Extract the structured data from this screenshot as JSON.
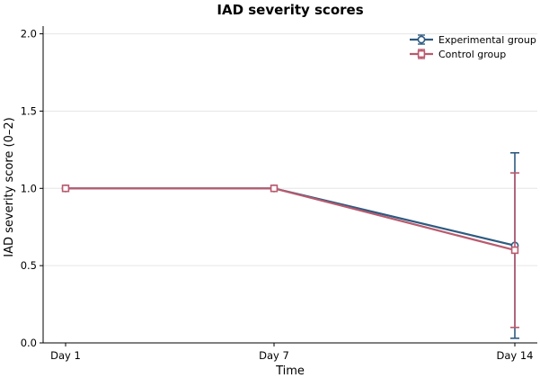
{
  "chart_data": {
    "type": "line",
    "title": "IAD severity scores",
    "xlabel": "Time",
    "ylabel": "IAD severity score (0–2)",
    "categories": [
      "Day 1",
      "Day 7",
      "Day 14"
    ],
    "ylim": [
      0,
      2.05
    ],
    "yticks": [
      "0.0",
      "0.5",
      "1.0",
      "1.5",
      "2.0"
    ],
    "grid": "horizontal",
    "legend_position": "top-right",
    "series": [
      {
        "name": "Experimental group",
        "marker": "circle",
        "color": "#2e5b80",
        "values": [
          1.0,
          1.0,
          0.63
        ],
        "error_low": [
          1.0,
          1.0,
          0.03
        ],
        "error_high": [
          1.0,
          1.0,
          1.23
        ]
      },
      {
        "name": "Control group",
        "marker": "square",
        "color": "#b95a6e",
        "values": [
          1.0,
          1.0,
          0.6
        ],
        "error_low": [
          1.0,
          1.0,
          0.1
        ],
        "error_high": [
          1.0,
          1.0,
          1.1
        ]
      }
    ]
  }
}
